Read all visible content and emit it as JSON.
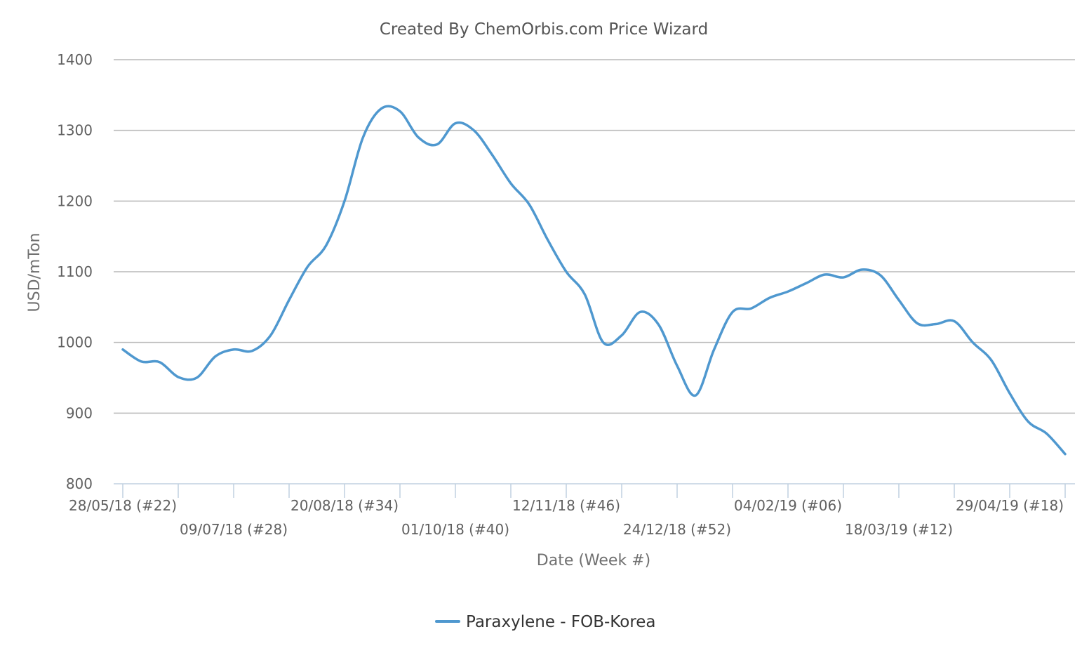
{
  "chart_data": {
    "type": "line",
    "title": "Created By ChemOrbis.com Price Wizard",
    "xlabel": "Date (Week #)",
    "ylabel": "USD/mTon",
    "ylim": [
      800,
      1400
    ],
    "yticks": [
      800,
      900,
      1000,
      1100,
      1200,
      1300,
      1400
    ],
    "grid": true,
    "legend_position": "bottom-center",
    "x_ticks": [
      {
        "week": 22,
        "label": "28/05/18 (#22)",
        "row": 0
      },
      {
        "week": 28,
        "label": "09/07/18 (#28)",
        "row": 1
      },
      {
        "week": 34,
        "label": "20/08/18 (#34)",
        "row": 0
      },
      {
        "week": 40,
        "label": "01/10/18 (#40)",
        "row": 1
      },
      {
        "week": 46,
        "label": "12/11/18 (#46)",
        "row": 0
      },
      {
        "week": 52,
        "label": "24/12/18 (#52)",
        "row": 1
      },
      {
        "week": 58,
        "label": "04/02/19 (#06)",
        "row": 0
      },
      {
        "week": 64,
        "label": "18/03/19 (#12)",
        "row": 1
      },
      {
        "week": 70,
        "label": "29/04/19 (#18)",
        "row": 0
      }
    ],
    "series": [
      {
        "name": "Paraxylene - FOB-Korea",
        "color": "#4f98cf",
        "points": [
          [
            22,
            990
          ],
          [
            23,
            973
          ],
          [
            24,
            972
          ],
          [
            25,
            951
          ],
          [
            26,
            950
          ],
          [
            27,
            980
          ],
          [
            28,
            990
          ],
          [
            29,
            988
          ],
          [
            30,
            1010
          ],
          [
            31,
            1060
          ],
          [
            32,
            1107
          ],
          [
            33,
            1137
          ],
          [
            34,
            1200
          ],
          [
            35,
            1290
          ],
          [
            36,
            1331
          ],
          [
            37,
            1327
          ],
          [
            38,
            1290
          ],
          [
            39,
            1280
          ],
          [
            40,
            1310
          ],
          [
            41,
            1300
          ],
          [
            42,
            1265
          ],
          [
            43,
            1225
          ],
          [
            44,
            1195
          ],
          [
            45,
            1145
          ],
          [
            46,
            1100
          ],
          [
            47,
            1068
          ],
          [
            48,
            1000
          ],
          [
            49,
            1010
          ],
          [
            50,
            1043
          ],
          [
            51,
            1025
          ],
          [
            52,
            967
          ],
          [
            53,
            925
          ],
          [
            54,
            990
          ],
          [
            55,
            1043
          ],
          [
            56,
            1048
          ],
          [
            57,
            1063
          ],
          [
            58,
            1072
          ],
          [
            59,
            1084
          ],
          [
            60,
            1096
          ],
          [
            61,
            1092
          ],
          [
            62,
            1103
          ],
          [
            63,
            1095
          ],
          [
            64,
            1060
          ],
          [
            65,
            1027
          ],
          [
            66,
            1026
          ],
          [
            67,
            1030
          ],
          [
            68,
            1000
          ],
          [
            69,
            975
          ],
          [
            70,
            928
          ],
          [
            71,
            888
          ],
          [
            72,
            871
          ],
          [
            73,
            842
          ]
        ]
      }
    ]
  }
}
